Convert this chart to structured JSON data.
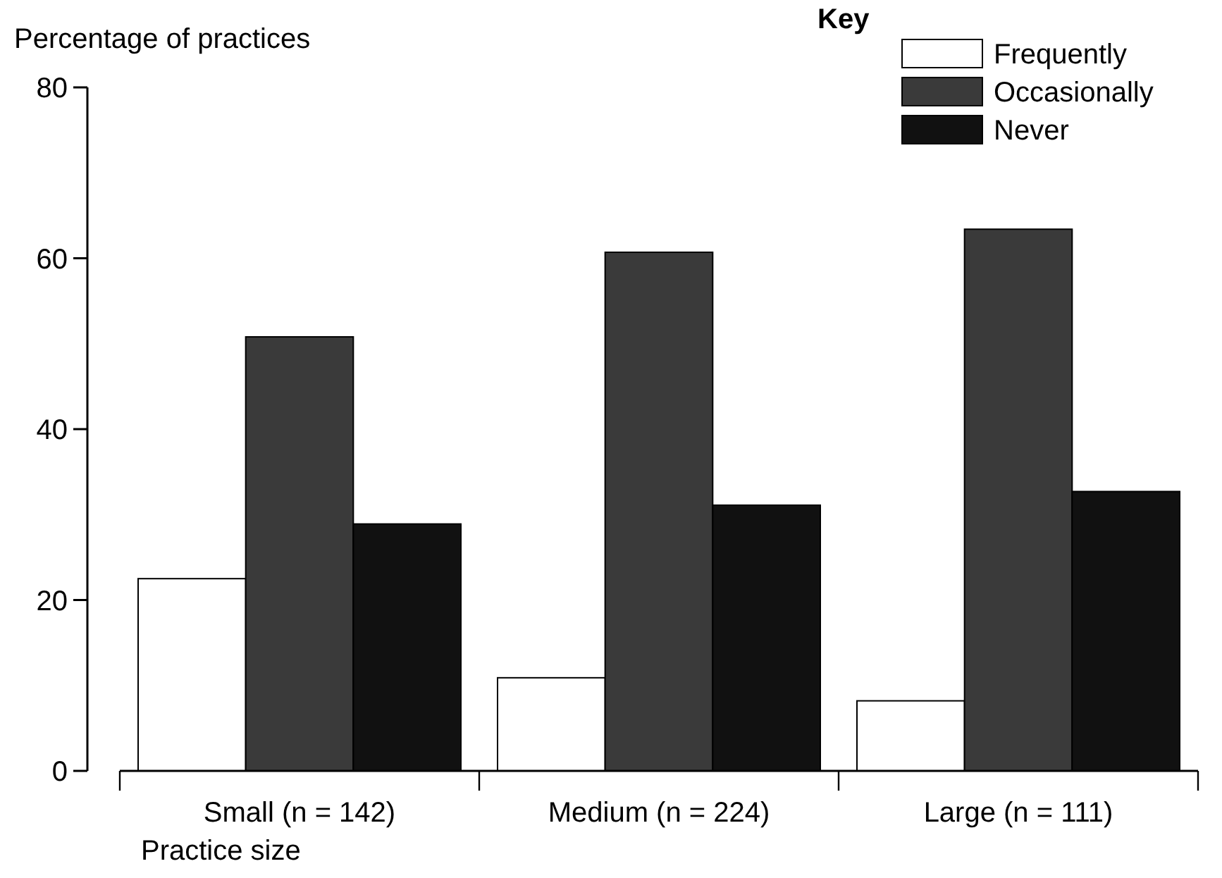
{
  "chart_data": {
    "type": "bar",
    "ylabel": "Percentage of practices",
    "xlabel": "Practice size",
    "legend_title": "Key",
    "legend": "top right",
    "categories": [
      "Small (n = 142)",
      "Medium (n = 224)",
      "Large (n = 111)"
    ],
    "series": [
      {
        "name": "Frequently",
        "color": "#ffffff",
        "values": [
          22.5,
          10.9,
          8.2
        ]
      },
      {
        "name": "Occasionally",
        "color": "#3a3a3a",
        "values": [
          50.8,
          60.7,
          63.4
        ]
      },
      {
        "name": "Never",
        "color": "#111111",
        "values": [
          28.9,
          31.1,
          32.7
        ]
      }
    ],
    "ylim": [
      0,
      80
    ],
    "yticks": [
      0,
      20,
      40,
      60,
      80
    ]
  }
}
